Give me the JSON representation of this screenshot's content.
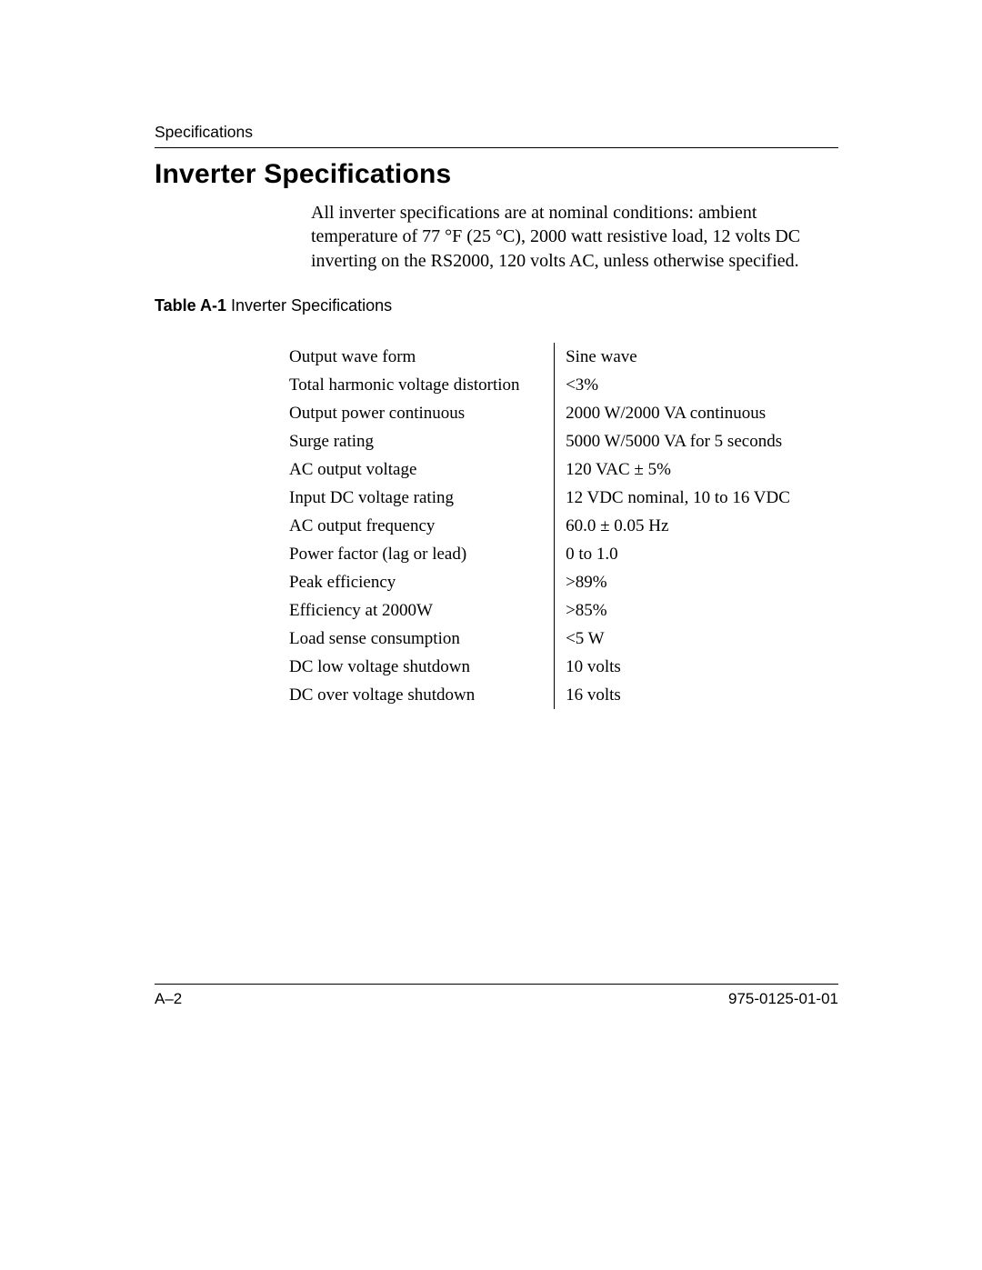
{
  "header": {
    "running_head": "Specifications"
  },
  "title": "Inverter Specifications",
  "intro": "All inverter specifications are at nominal conditions: ambient temperature of 77 °F (25 °C), 2000 watt resistive load, 12 volts DC inverting on the RS2000, 120 volts AC, unless otherwise specified.",
  "table": {
    "caption_bold": "Table A-1",
    "caption_rest": "Inverter Specifications",
    "rows": [
      {
        "label": "Output wave form",
        "value": "Sine wave"
      },
      {
        "label": "Total harmonic voltage distortion",
        "value": "<3%"
      },
      {
        "label": "Output power continuous",
        "value": "2000 W/2000 VA continuous"
      },
      {
        "label": "Surge rating",
        "value": "5000 W/5000 VA for 5 seconds"
      },
      {
        "label": "AC output voltage",
        "value": "120 VAC ± 5%"
      },
      {
        "label": "Input DC voltage rating",
        "value": "12 VDC nominal, 10 to 16 VDC"
      },
      {
        "label": "AC output frequency",
        "value": "60.0 ± 0.05 Hz"
      },
      {
        "label": "Power factor (lag or lead)",
        "value": "0 to 1.0"
      },
      {
        "label": "Peak efficiency",
        "value": ">89%"
      },
      {
        "label": "Efficiency at 2000W",
        "value": ">85%"
      },
      {
        "label": "Load sense consumption",
        "value": "<5 W"
      },
      {
        "label": "DC low voltage shutdown",
        "value": "10 volts"
      },
      {
        "label": "DC over voltage shutdown",
        "value": "16 volts"
      }
    ]
  },
  "footer": {
    "page_num": "A–2",
    "doc_num": "975-0125-01-01"
  }
}
